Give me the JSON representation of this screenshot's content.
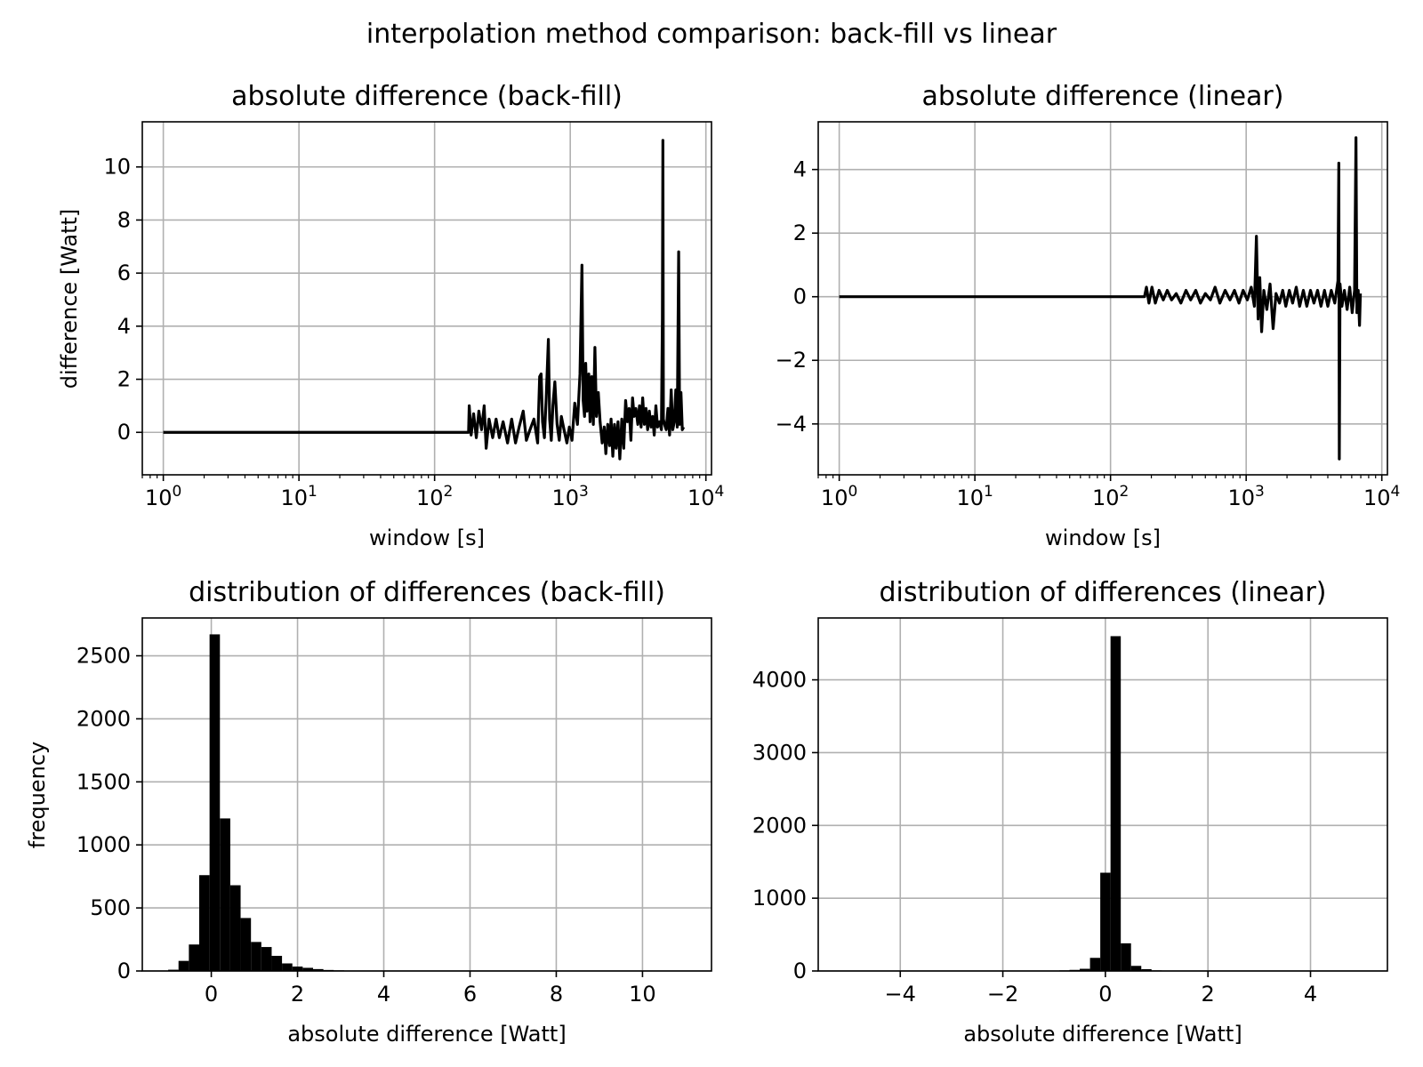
{
  "figure": {
    "title": "interpolation method comparison: back-fill vs linear",
    "colors": {
      "line": "#000000",
      "bar": "#000000",
      "grid": "#b0b0b0",
      "background": "#ffffff"
    }
  },
  "chart_data": [
    {
      "id": "backfill-series",
      "type": "line",
      "title": "absolute difference (back-fill)",
      "xlabel": "window [s]",
      "ylabel": "difference [Watt]",
      "xscale": "log",
      "xlim": [
        0.7,
        11000
      ],
      "ylim": [
        -1.6,
        11.7
      ],
      "xticks": [
        {
          "value": 1,
          "label": "10^0"
        },
        {
          "value": 10,
          "label": "10^1"
        },
        {
          "value": 100,
          "label": "10^2"
        },
        {
          "value": 1000,
          "label": "10^3"
        },
        {
          "value": 10000,
          "label": "10^4"
        }
      ],
      "yticks": [
        0,
        2,
        4,
        6,
        8,
        10
      ],
      "grid": true,
      "points": [
        [
          1,
          0
        ],
        [
          178,
          0
        ],
        [
          180,
          1.0
        ],
        [
          186,
          -0.1
        ],
        [
          194,
          0.7
        ],
        [
          203,
          -0.2
        ],
        [
          212,
          0.8
        ],
        [
          222,
          0.1
        ],
        [
          232,
          1.0
        ],
        [
          240,
          -0.6
        ],
        [
          252,
          0.5
        ],
        [
          268,
          -0.2
        ],
        [
          284,
          0.5
        ],
        [
          300,
          -0.2
        ],
        [
          320,
          0.4
        ],
        [
          345,
          -0.4
        ],
        [
          370,
          0.5
        ],
        [
          395,
          -0.4
        ],
        [
          420,
          0.2
        ],
        [
          450,
          0.8
        ],
        [
          475,
          -0.3
        ],
        [
          505,
          0.1
        ],
        [
          540,
          0.5
        ],
        [
          575,
          -0.4
        ],
        [
          595,
          2.1
        ],
        [
          610,
          2.2
        ],
        [
          625,
          0.4
        ],
        [
          645,
          -0.2
        ],
        [
          665,
          1.3
        ],
        [
          690,
          3.5
        ],
        [
          705,
          0.5
        ],
        [
          725,
          -0.3
        ],
        [
          745,
          1.0
        ],
        [
          770,
          1.9
        ],
        [
          800,
          0.3
        ],
        [
          830,
          -0.3
        ],
        [
          860,
          0.6
        ],
        [
          900,
          0.1
        ],
        [
          945,
          -0.4
        ],
        [
          985,
          0.2
        ],
        [
          1030,
          -0.3
        ],
        [
          1080,
          1.1
        ],
        [
          1130,
          0.3
        ],
        [
          1180,
          2.2
        ],
        [
          1220,
          6.3
        ],
        [
          1245,
          1.2
        ],
        [
          1275,
          0.6
        ],
        [
          1300,
          2.6
        ],
        [
          1330,
          0.8
        ],
        [
          1370,
          2.2
        ],
        [
          1400,
          0.4
        ],
        [
          1440,
          2.1
        ],
        [
          1480,
          0.3
        ],
        [
          1520,
          3.2
        ],
        [
          1560,
          0.6
        ],
        [
          1610,
          1.5
        ],
        [
          1660,
          0.4
        ],
        [
          1720,
          -0.4
        ],
        [
          1780,
          0.2
        ],
        [
          1830,
          -0.8
        ],
        [
          1890,
          0.3
        ],
        [
          1950,
          -0.5
        ],
        [
          2000,
          0.5
        ],
        [
          2060,
          -0.9
        ],
        [
          2120,
          0.3
        ],
        [
          2180,
          -0.6
        ],
        [
          2250,
          0.4
        ],
        [
          2320,
          -1.0
        ],
        [
          2400,
          0.5
        ],
        [
          2480,
          -0.6
        ],
        [
          2560,
          1.2
        ],
        [
          2640,
          0.4
        ],
        [
          2720,
          0.9
        ],
        [
          2800,
          -0.3
        ],
        [
          2880,
          1.3
        ],
        [
          2960,
          0.6
        ],
        [
          3050,
          0.9
        ],
        [
          3150,
          0.3
        ],
        [
          3240,
          1.0
        ],
        [
          3330,
          0.2
        ],
        [
          3420,
          1.3
        ],
        [
          3520,
          0.3
        ],
        [
          3620,
          0.9
        ],
        [
          3720,
          0.1
        ],
        [
          3830,
          0.8
        ],
        [
          3940,
          0.2
        ],
        [
          4050,
          0.6
        ],
        [
          4160,
          -0.1
        ],
        [
          4280,
          1.0
        ],
        [
          4400,
          0.2
        ],
        [
          4550,
          0.4
        ],
        [
          4700,
          0.1
        ],
        [
          4780,
          4.3
        ],
        [
          4820,
          11.0
        ],
        [
          4860,
          0.5
        ],
        [
          4950,
          0.3
        ],
        [
          5100,
          0.1
        ],
        [
          5250,
          0.9
        ],
        [
          5400,
          -0.1
        ],
        [
          5550,
          1.6
        ],
        [
          5700,
          0.1
        ],
        [
          5850,
          0.4
        ],
        [
          6000,
          1.6
        ],
        [
          6150,
          0.2
        ],
        [
          6300,
          6.8
        ],
        [
          6400,
          0.3
        ],
        [
          6550,
          1.5
        ],
        [
          6700,
          0.1
        ],
        [
          6850,
          0.2
        ]
      ]
    },
    {
      "id": "linear-series",
      "type": "line",
      "title": "absolute difference (linear)",
      "xlabel": "window [s]",
      "ylabel": "",
      "xscale": "log",
      "xlim": [
        0.7,
        11000
      ],
      "ylim": [
        -5.6,
        5.5
      ],
      "xticks": [
        {
          "value": 1,
          "label": "10^0"
        },
        {
          "value": 10,
          "label": "10^1"
        },
        {
          "value": 100,
          "label": "10^2"
        },
        {
          "value": 1000,
          "label": "10^3"
        },
        {
          "value": 10000,
          "label": "10^4"
        }
      ],
      "yticks": [
        {
          "value": -4,
          "label": "−4"
        },
        {
          "value": -2,
          "label": "−2"
        },
        {
          "value": 0,
          "label": "0"
        },
        {
          "value": 2,
          "label": "2"
        },
        {
          "value": 4,
          "label": "4"
        }
      ],
      "grid": true,
      "points": [
        [
          1,
          0
        ],
        [
          178,
          0
        ],
        [
          184,
          0.3
        ],
        [
          192,
          -0.2
        ],
        [
          202,
          0.3
        ],
        [
          214,
          -0.2
        ],
        [
          228,
          0.2
        ],
        [
          245,
          -0.1
        ],
        [
          262,
          0.2
        ],
        [
          282,
          -0.1
        ],
        [
          305,
          0.1
        ],
        [
          330,
          -0.2
        ],
        [
          360,
          0.2
        ],
        [
          390,
          -0.1
        ],
        [
          425,
          0.2
        ],
        [
          460,
          -0.2
        ],
        [
          500,
          0.1
        ],
        [
          545,
          -0.1
        ],
        [
          590,
          0.3
        ],
        [
          640,
          -0.2
        ],
        [
          700,
          0.2
        ],
        [
          760,
          -0.1
        ],
        [
          820,
          0.2
        ],
        [
          885,
          -0.2
        ],
        [
          950,
          0.2
        ],
        [
          1020,
          -0.1
        ],
        [
          1090,
          0.3
        ],
        [
          1150,
          -0.3
        ],
        [
          1190,
          1.9
        ],
        [
          1225,
          -0.7
        ],
        [
          1260,
          0.6
        ],
        [
          1300,
          -1.1
        ],
        [
          1350,
          0.2
        ],
        [
          1420,
          -0.4
        ],
        [
          1500,
          0.4
        ],
        [
          1580,
          -1.0
        ],
        [
          1660,
          0.1
        ],
        [
          1760,
          -0.2
        ],
        [
          1860,
          0.2
        ],
        [
          1960,
          -0.3
        ],
        [
          2080,
          0.2
        ],
        [
          2200,
          -0.2
        ],
        [
          2340,
          0.3
        ],
        [
          2480,
          -0.3
        ],
        [
          2640,
          0.2
        ],
        [
          2800,
          -0.3
        ],
        [
          2980,
          0.2
        ],
        [
          3160,
          -0.2
        ],
        [
          3360,
          0.2
        ],
        [
          3560,
          -0.3
        ],
        [
          3780,
          0.2
        ],
        [
          4000,
          -0.3
        ],
        [
          4240,
          0.2
        ],
        [
          4500,
          -0.2
        ],
        [
          4750,
          0.5
        ],
        [
          4820,
          4.2
        ],
        [
          4860,
          -5.1
        ],
        [
          4920,
          0.4
        ],
        [
          5080,
          -0.3
        ],
        [
          5300,
          0.2
        ],
        [
          5550,
          -0.4
        ],
        [
          5800,
          0.3
        ],
        [
          6050,
          -0.5
        ],
        [
          6300,
          0.2
        ],
        [
          6450,
          5.0
        ],
        [
          6550,
          -0.5
        ],
        [
          6700,
          0.2
        ],
        [
          6850,
          -0.9
        ],
        [
          6950,
          0.1
        ]
      ]
    },
    {
      "id": "backfill-hist",
      "type": "bar",
      "title": "distribution of differences (back-fill)",
      "xlabel": "absolute difference [Watt]",
      "ylabel": "frequency",
      "xlim": [
        -1.6,
        11.6
      ],
      "ylim": [
        0,
        2800
      ],
      "xticks": [
        0,
        2,
        4,
        6,
        8,
        10
      ],
      "yticks": [
        0,
        500,
        1000,
        1500,
        2000,
        2500
      ],
      "grid": true,
      "bin_start": -1.0,
      "bin_width": 0.24,
      "counts": [
        10,
        80,
        210,
        760,
        2670,
        1210,
        680,
        420,
        230,
        190,
        120,
        60,
        35,
        25,
        15,
        8,
        5,
        3,
        2,
        1,
        1,
        1,
        1,
        0,
        1,
        0,
        0,
        0,
        0,
        0,
        0,
        0,
        0,
        0,
        0,
        0,
        0,
        0,
        0,
        0,
        0,
        0,
        0,
        0,
        0,
        0,
        0,
        0,
        0,
        1
      ]
    },
    {
      "id": "linear-hist",
      "type": "bar",
      "title": "distribution of differences (linear)",
      "xlabel": "absolute difference [Watt]",
      "ylabel": "",
      "xlim": [
        -5.6,
        5.5
      ],
      "ylim": [
        0,
        4850
      ],
      "xticks": [
        {
          "value": -4,
          "label": "−4"
        },
        {
          "value": -2,
          "label": "−2"
        },
        {
          "value": 0,
          "label": "0"
        },
        {
          "value": 2,
          "label": "2"
        },
        {
          "value": 4,
          "label": "4"
        }
      ],
      "yticks": [
        0,
        1000,
        2000,
        3000,
        4000
      ],
      "grid": true,
      "bin_start": -1.1,
      "bin_width": 0.2,
      "counts": [
        3,
        8,
        15,
        30,
        180,
        1350,
        4600,
        380,
        70,
        25,
        8,
        3
      ]
    }
  ]
}
